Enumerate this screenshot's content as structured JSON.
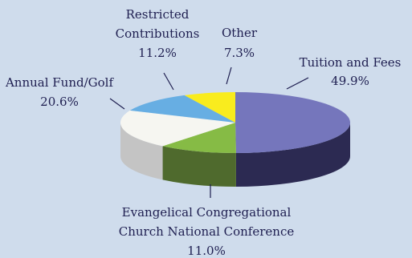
{
  "chart_data": {
    "type": "pie",
    "style": "3d",
    "title": "",
    "slices": [
      {
        "label": "Tuition and Fees",
        "value": 49.9,
        "display": "49.9%",
        "color": "#7576bc",
        "side_color": "#2c2a52"
      },
      {
        "label": "Evangelical Congregational Church National Conference",
        "label_lines": [
          "Evangelical Congregational",
          "Church National Conference"
        ],
        "value": 11.0,
        "display": "11.0%",
        "color": "#86bb45",
        "side_color": "#4f6a2d"
      },
      {
        "label": "Annual Fund/Golf",
        "value": 20.6,
        "display": "20.6%",
        "color": "#f6f6f1",
        "side_color": "#c4c4c4"
      },
      {
        "label": "Restricted Contributions",
        "label_lines": [
          "Restricted",
          "Contributions"
        ],
        "value": 11.2,
        "display": "11.2%",
        "color": "#67aee3",
        "side_color": "#3f78a8"
      },
      {
        "label": "Other",
        "value": 7.3,
        "display": "7.3%",
        "color": "#f9ec1e",
        "side_color": "#b9a612"
      }
    ]
  }
}
